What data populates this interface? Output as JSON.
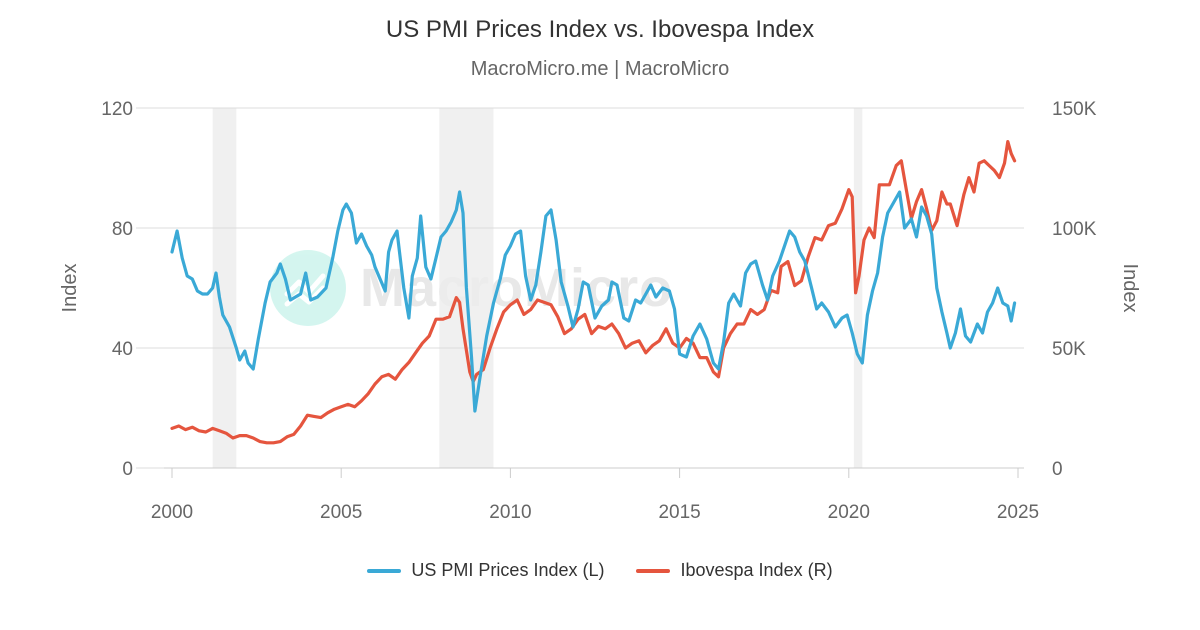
{
  "chart_data": {
    "type": "line",
    "title": "US PMI Prices Index vs. Ibovespa Index",
    "subtitle": "MacroMicro.me | MacroMicro",
    "xlabel": "",
    "ylabel_left": "Index",
    "ylabel_right": "Index",
    "xlim": [
      2000,
      2025
    ],
    "ylim_left": [
      0,
      120
    ],
    "ylim_right": [
      0,
      150000
    ],
    "x_ticks": [
      "2000",
      "2005",
      "2010",
      "2015",
      "2020",
      "2025"
    ],
    "y_ticks_left": [
      "0",
      "40",
      "80",
      "120"
    ],
    "y_ticks_right": [
      "0",
      "50K",
      "100K",
      "150K"
    ],
    "grid": true,
    "legend_position": "bottom",
    "watermark": "MacroMicro",
    "recession_bands": [
      [
        2001.2,
        2001.9
      ],
      [
        2007.9,
        2009.5
      ],
      [
        2020.15,
        2020.4
      ]
    ],
    "series": [
      {
        "name": "US PMI Prices Index (L)",
        "axis": "left",
        "color": "#3aa9d6",
        "points": [
          [
            2000.0,
            72
          ],
          [
            2000.15,
            79
          ],
          [
            2000.3,
            70
          ],
          [
            2000.45,
            64
          ],
          [
            2000.6,
            63
          ],
          [
            2000.75,
            59
          ],
          [
            2000.9,
            58
          ],
          [
            2001.05,
            58
          ],
          [
            2001.2,
            60
          ],
          [
            2001.3,
            65
          ],
          [
            2001.4,
            57
          ],
          [
            2001.5,
            51
          ],
          [
            2001.7,
            47
          ],
          [
            2001.9,
            40
          ],
          [
            2002.0,
            36
          ],
          [
            2002.15,
            39
          ],
          [
            2002.25,
            35
          ],
          [
            2002.4,
            33
          ],
          [
            2002.55,
            43
          ],
          [
            2002.75,
            55
          ],
          [
            2002.9,
            62
          ],
          [
            2003.1,
            65
          ],
          [
            2003.2,
            68
          ],
          [
            2003.35,
            63
          ],
          [
            2003.5,
            56
          ],
          [
            2003.65,
            57
          ],
          [
            2003.8,
            58
          ],
          [
            2003.95,
            65
          ],
          [
            2004.1,
            56
          ],
          [
            2004.3,
            57
          ],
          [
            2004.55,
            60
          ],
          [
            2004.75,
            70
          ],
          [
            2004.9,
            79
          ],
          [
            2005.05,
            86
          ],
          [
            2005.15,
            88
          ],
          [
            2005.3,
            85
          ],
          [
            2005.45,
            75
          ],
          [
            2005.6,
            78
          ],
          [
            2005.75,
            74
          ],
          [
            2005.9,
            71
          ],
          [
            2006.0,
            67
          ],
          [
            2006.15,
            63
          ],
          [
            2006.3,
            59
          ],
          [
            2006.4,
            72
          ],
          [
            2006.5,
            76
          ],
          [
            2006.65,
            79
          ],
          [
            2006.85,
            60
          ],
          [
            2007.0,
            50
          ],
          [
            2007.1,
            64
          ],
          [
            2007.25,
            70
          ],
          [
            2007.35,
            84
          ],
          [
            2007.5,
            67
          ],
          [
            2007.65,
            63
          ],
          [
            2007.8,
            70
          ],
          [
            2007.95,
            77
          ],
          [
            2008.1,
            79
          ],
          [
            2008.25,
            82
          ],
          [
            2008.4,
            86
          ],
          [
            2008.5,
            92
          ],
          [
            2008.6,
            85
          ],
          [
            2008.7,
            60
          ],
          [
            2008.85,
            37
          ],
          [
            2008.95,
            19
          ],
          [
            2009.1,
            30
          ],
          [
            2009.3,
            44
          ],
          [
            2009.5,
            55
          ],
          [
            2009.7,
            63
          ],
          [
            2009.85,
            71
          ],
          [
            2010.0,
            74
          ],
          [
            2010.15,
            78
          ],
          [
            2010.3,
            79
          ],
          [
            2010.45,
            64
          ],
          [
            2010.6,
            56
          ],
          [
            2010.75,
            61
          ],
          [
            2010.9,
            72
          ],
          [
            2011.05,
            84
          ],
          [
            2011.2,
            86
          ],
          [
            2011.35,
            76
          ],
          [
            2011.5,
            62
          ],
          [
            2011.7,
            54
          ],
          [
            2011.85,
            47
          ],
          [
            2012.0,
            53
          ],
          [
            2012.15,
            62
          ],
          [
            2012.3,
            61
          ],
          [
            2012.5,
            50
          ],
          [
            2012.7,
            54
          ],
          [
            2012.9,
            56
          ],
          [
            2013.0,
            62
          ],
          [
            2013.15,
            61
          ],
          [
            2013.35,
            50
          ],
          [
            2013.5,
            49
          ],
          [
            2013.7,
            56
          ],
          [
            2013.85,
            55
          ],
          [
            2014.0,
            58
          ],
          [
            2014.15,
            61
          ],
          [
            2014.3,
            57
          ],
          [
            2014.5,
            60
          ],
          [
            2014.7,
            59
          ],
          [
            2014.85,
            53
          ],
          [
            2015.0,
            38
          ],
          [
            2015.2,
            37
          ],
          [
            2015.4,
            44
          ],
          [
            2015.6,
            48
          ],
          [
            2015.8,
            43
          ],
          [
            2016.0,
            35
          ],
          [
            2016.15,
            33
          ],
          [
            2016.3,
            42
          ],
          [
            2016.45,
            55
          ],
          [
            2016.6,
            58
          ],
          [
            2016.8,
            54
          ],
          [
            2016.95,
            65
          ],
          [
            2017.1,
            68
          ],
          [
            2017.25,
            69
          ],
          [
            2017.45,
            61
          ],
          [
            2017.6,
            56
          ],
          [
            2017.75,
            64
          ],
          [
            2017.95,
            69
          ],
          [
            2018.1,
            74
          ],
          [
            2018.25,
            79
          ],
          [
            2018.4,
            77
          ],
          [
            2018.55,
            72
          ],
          [
            2018.7,
            69
          ],
          [
            2018.9,
            60
          ],
          [
            2019.05,
            53
          ],
          [
            2019.2,
            55
          ],
          [
            2019.4,
            52
          ],
          [
            2019.6,
            47
          ],
          [
            2019.8,
            50
          ],
          [
            2019.95,
            51
          ],
          [
            2020.1,
            45
          ],
          [
            2020.25,
            38
          ],
          [
            2020.4,
            35
          ],
          [
            2020.55,
            51
          ],
          [
            2020.7,
            59
          ],
          [
            2020.85,
            65
          ],
          [
            2021.0,
            77
          ],
          [
            2021.15,
            85
          ],
          [
            2021.35,
            89
          ],
          [
            2021.5,
            92
          ],
          [
            2021.65,
            80
          ],
          [
            2021.85,
            83
          ],
          [
            2022.0,
            77
          ],
          [
            2022.15,
            87
          ],
          [
            2022.3,
            84
          ],
          [
            2022.45,
            78
          ],
          [
            2022.6,
            60
          ],
          [
            2022.75,
            52
          ],
          [
            2022.9,
            45
          ],
          [
            2023.0,
            40
          ],
          [
            2023.15,
            45
          ],
          [
            2023.3,
            53
          ],
          [
            2023.45,
            44
          ],
          [
            2023.6,
            42
          ],
          [
            2023.8,
            48
          ],
          [
            2023.95,
            45
          ],
          [
            2024.1,
            52
          ],
          [
            2024.25,
            55
          ],
          [
            2024.4,
            60
          ],
          [
            2024.55,
            55
          ],
          [
            2024.7,
            54
          ],
          [
            2024.8,
            49
          ],
          [
            2024.9,
            55
          ]
        ]
      },
      {
        "name": "Ibovespa Index (R)",
        "axis": "right",
        "color": "#e5553e",
        "points": [
          [
            2000.0,
            16500
          ],
          [
            2000.2,
            17500
          ],
          [
            2000.4,
            16000
          ],
          [
            2000.6,
            17000
          ],
          [
            2000.8,
            15500
          ],
          [
            2001.0,
            15000
          ],
          [
            2001.2,
            16500
          ],
          [
            2001.4,
            15500
          ],
          [
            2001.6,
            14500
          ],
          [
            2001.8,
            12500
          ],
          [
            2002.0,
            13500
          ],
          [
            2002.2,
            13500
          ],
          [
            2002.4,
            12500
          ],
          [
            2002.6,
            11000
          ],
          [
            2002.8,
            10500
          ],
          [
            2003.0,
            10500
          ],
          [
            2003.2,
            11000
          ],
          [
            2003.4,
            13000
          ],
          [
            2003.6,
            14000
          ],
          [
            2003.8,
            17500
          ],
          [
            2004.0,
            22000
          ],
          [
            2004.2,
            21500
          ],
          [
            2004.4,
            21000
          ],
          [
            2004.6,
            23000
          ],
          [
            2004.8,
            24500
          ],
          [
            2005.0,
            25500
          ],
          [
            2005.2,
            26500
          ],
          [
            2005.4,
            25500
          ],
          [
            2005.6,
            28000
          ],
          [
            2005.8,
            31000
          ],
          [
            2006.0,
            35000
          ],
          [
            2006.2,
            38000
          ],
          [
            2006.4,
            39000
          ],
          [
            2006.6,
            37000
          ],
          [
            2006.8,
            41000
          ],
          [
            2007.0,
            44000
          ],
          [
            2007.2,
            48000
          ],
          [
            2007.4,
            52000
          ],
          [
            2007.6,
            55000
          ],
          [
            2007.8,
            62000
          ],
          [
            2008.0,
            62000
          ],
          [
            2008.2,
            63000
          ],
          [
            2008.4,
            71000
          ],
          [
            2008.5,
            69000
          ],
          [
            2008.6,
            58000
          ],
          [
            2008.8,
            40000
          ],
          [
            2008.9,
            36000
          ],
          [
            2009.0,
            39000
          ],
          [
            2009.2,
            41000
          ],
          [
            2009.4,
            50000
          ],
          [
            2009.6,
            58000
          ],
          [
            2009.8,
            65000
          ],
          [
            2010.0,
            68000
          ],
          [
            2010.2,
            70000
          ],
          [
            2010.4,
            64000
          ],
          [
            2010.6,
            66000
          ],
          [
            2010.8,
            70000
          ],
          [
            2011.0,
            69000
          ],
          [
            2011.2,
            68000
          ],
          [
            2011.4,
            63000
          ],
          [
            2011.6,
            56000
          ],
          [
            2011.8,
            58000
          ],
          [
            2012.0,
            62000
          ],
          [
            2012.2,
            64000
          ],
          [
            2012.4,
            56000
          ],
          [
            2012.6,
            59000
          ],
          [
            2012.8,
            58000
          ],
          [
            2013.0,
            60000
          ],
          [
            2013.2,
            56000
          ],
          [
            2013.4,
            50000
          ],
          [
            2013.6,
            52000
          ],
          [
            2013.8,
            53000
          ],
          [
            2014.0,
            48000
          ],
          [
            2014.2,
            51000
          ],
          [
            2014.4,
            53000
          ],
          [
            2014.6,
            58000
          ],
          [
            2014.8,
            52000
          ],
          [
            2015.0,
            50000
          ],
          [
            2015.2,
            54000
          ],
          [
            2015.4,
            52000
          ],
          [
            2015.6,
            46000
          ],
          [
            2015.8,
            46000
          ],
          [
            2016.0,
            40000
          ],
          [
            2016.15,
            38000
          ],
          [
            2016.3,
            50000
          ],
          [
            2016.5,
            56000
          ],
          [
            2016.7,
            60000
          ],
          [
            2016.9,
            60000
          ],
          [
            2017.1,
            66000
          ],
          [
            2017.3,
            64000
          ],
          [
            2017.5,
            66000
          ],
          [
            2017.7,
            74000
          ],
          [
            2017.9,
            73000
          ],
          [
            2018.0,
            84000
          ],
          [
            2018.2,
            86000
          ],
          [
            2018.4,
            76000
          ],
          [
            2018.6,
            78000
          ],
          [
            2018.8,
            88000
          ],
          [
            2019.0,
            96000
          ],
          [
            2019.2,
            95000
          ],
          [
            2019.4,
            101000
          ],
          [
            2019.6,
            102000
          ],
          [
            2019.8,
            108000
          ],
          [
            2020.0,
            116000
          ],
          [
            2020.1,
            113000
          ],
          [
            2020.2,
            73000
          ],
          [
            2020.3,
            80000
          ],
          [
            2020.45,
            95000
          ],
          [
            2020.6,
            100000
          ],
          [
            2020.75,
            96000
          ],
          [
            2020.9,
            118000
          ],
          [
            2021.05,
            118000
          ],
          [
            2021.2,
            118000
          ],
          [
            2021.4,
            126000
          ],
          [
            2021.55,
            128000
          ],
          [
            2021.7,
            116000
          ],
          [
            2021.85,
            104000
          ],
          [
            2022.0,
            111000
          ],
          [
            2022.15,
            116000
          ],
          [
            2022.3,
            108000
          ],
          [
            2022.45,
            99000
          ],
          [
            2022.6,
            103000
          ],
          [
            2022.75,
            115000
          ],
          [
            2022.9,
            110000
          ],
          [
            2023.0,
            110000
          ],
          [
            2023.2,
            101000
          ],
          [
            2023.4,
            114000
          ],
          [
            2023.55,
            121000
          ],
          [
            2023.7,
            115000
          ],
          [
            2023.85,
            127000
          ],
          [
            2024.0,
            128000
          ],
          [
            2024.15,
            126000
          ],
          [
            2024.3,
            124000
          ],
          [
            2024.45,
            121000
          ],
          [
            2024.6,
            127000
          ],
          [
            2024.7,
            136000
          ],
          [
            2024.8,
            131000
          ],
          [
            2024.9,
            128000
          ]
        ]
      }
    ]
  },
  "legend": {
    "items": [
      {
        "label": "US PMI Prices Index (L)",
        "color": "#3aa9d6"
      },
      {
        "label": "Ibovespa Index (R)",
        "color": "#e5553e"
      }
    ]
  }
}
